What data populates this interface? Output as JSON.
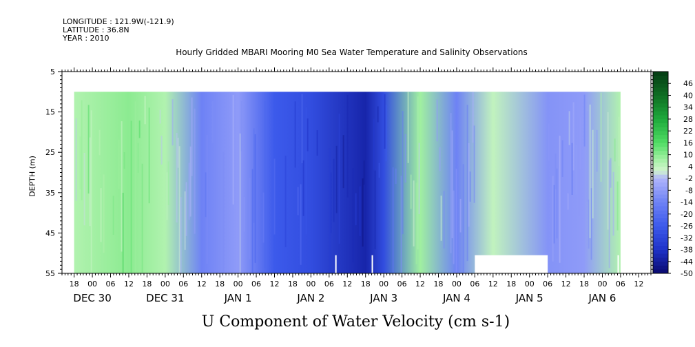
{
  "header": {
    "longitude": "LONGITUDE : 121.9W(-121.9)",
    "latitude": "LATITUDE : 36.8N",
    "year": "YEAR : 2010"
  },
  "chart_data": {
    "type": "heatmap",
    "title": "Hourly Gridded MBARI Mooring M0 Sea Water Temperature and Salinity Observations",
    "xlabel": "U Component of Water Velocity (cm s-1)",
    "ylabel": "DEPTH (m)",
    "y_ticks": [
      5,
      15,
      25,
      35,
      45,
      55
    ],
    "ylim": [
      5,
      55
    ],
    "y_inverted": true,
    "x_range_hours": [
      -10,
      184
    ],
    "x_hour_ticks": [
      "18",
      "00",
      "06",
      "12",
      "18",
      "00",
      "06",
      "12",
      "18",
      "00",
      "06",
      "12",
      "18",
      "00",
      "06",
      "12",
      "18",
      "00",
      "06",
      "12",
      "18",
      "00",
      "06",
      "12",
      "18",
      "00",
      "06",
      "12",
      "18",
      "00",
      "06",
      "12"
    ],
    "x_date_labels": [
      "DEC 30",
      "DEC 31",
      "JAN  1",
      "JAN  2",
      "JAN  3",
      "JAN  4",
      "JAN  5",
      "JAN  6"
    ],
    "colorbar_labels": [
      "46",
      "40",
      "34",
      "28",
      "22",
      "16",
      "10",
      "4",
      "-2",
      "-8",
      "-14",
      "-20",
      "-26",
      "-32",
      "-38",
      "-44",
      "-50"
    ],
    "colorbar_range": [
      -50,
      52
    ],
    "colorbar_step": 2,
    "data_depth_range": [
      10,
      55
    ],
    "approx_profile": [
      {
        "time": "DEC 29 18",
        "u": 6
      },
      {
        "time": "DEC 30 12",
        "u": 10
      },
      {
        "time": "DEC 31 00",
        "u": 6
      },
      {
        "time": "DEC 31 12",
        "u": -14
      },
      {
        "time": "JAN 1 00",
        "u": -8
      },
      {
        "time": "JAN 1 12",
        "u": -26
      },
      {
        "time": "JAN 2 00",
        "u": -30
      },
      {
        "time": "JAN 2 18",
        "u": -42
      },
      {
        "time": "JAN 3 00",
        "u": -30
      },
      {
        "time": "JAN 3 12",
        "u": 8
      },
      {
        "time": "JAN 4 00",
        "u": -14
      },
      {
        "time": "JAN 4 12",
        "u": 4
      },
      {
        "time": "JAN 5 06",
        "u": -10
      },
      {
        "time": "JAN 5 18",
        "u": -8
      },
      {
        "time": "JAN 6 06",
        "u": 6
      }
    ]
  }
}
